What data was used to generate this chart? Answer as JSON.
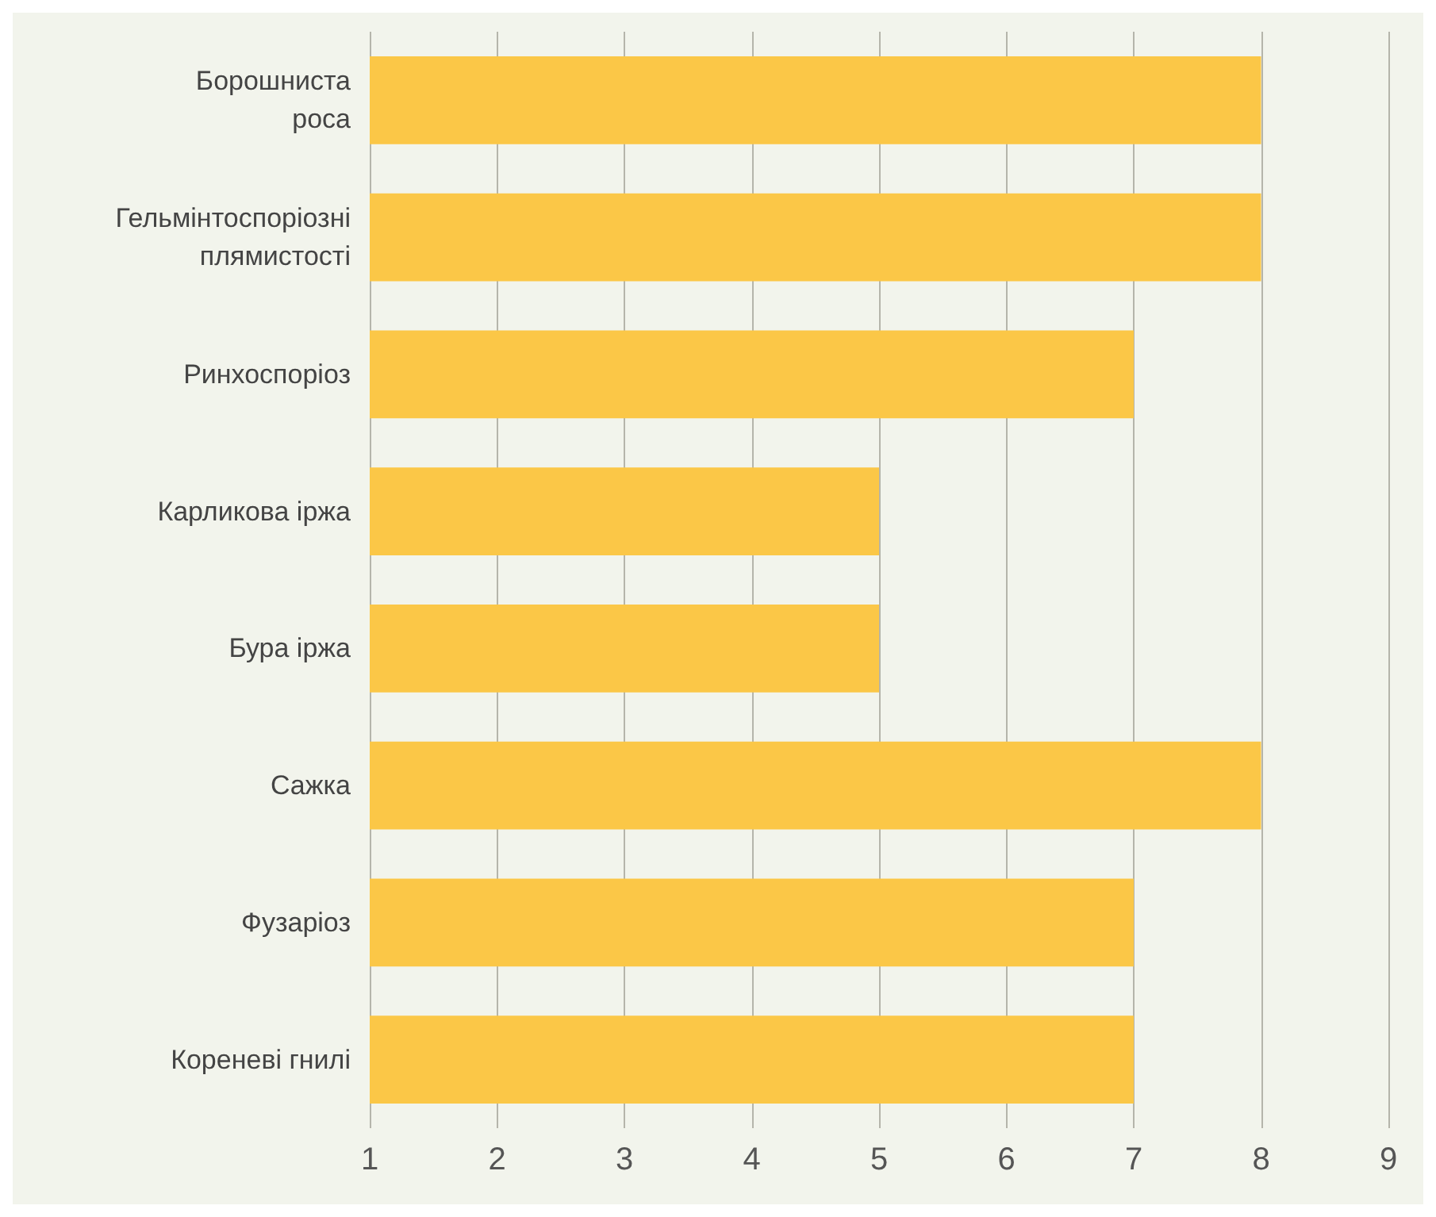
{
  "chart_data": {
    "type": "bar",
    "orientation": "horizontal",
    "categories": [
      "Борошниста роса",
      "Гельмінтоспоріозні плямистості",
      "Ринхоспоріоз",
      "Карликова іржа",
      "Бура іржа",
      "Сажка",
      "Фузаріоз",
      "Кореневі гнилі"
    ],
    "values": [
      8,
      8,
      7,
      5,
      5,
      8,
      7,
      7
    ],
    "color": "#fbc747",
    "xlim": [
      1,
      9
    ],
    "xticks": [
      1,
      2,
      3,
      4,
      5,
      6,
      7,
      8,
      9
    ],
    "grid": "x"
  }
}
